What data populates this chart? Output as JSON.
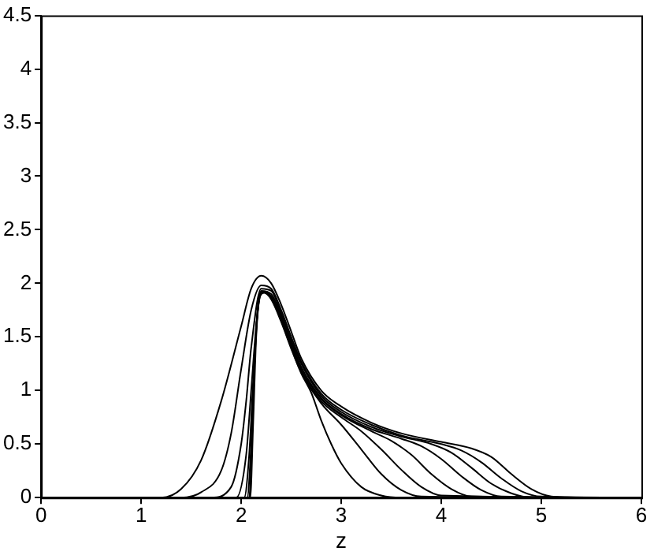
{
  "chart_data": {
    "type": "line",
    "xlabel": "z",
    "xlim": [
      0,
      6
    ],
    "xticks": [
      0,
      1,
      2,
      3,
      4,
      5,
      6
    ],
    "ylim": [
      0,
      4.5
    ],
    "yticks": [
      0,
      0.5,
      1,
      1.5,
      2,
      2.5,
      3,
      3.5,
      4,
      4.5
    ],
    "grid": false,
    "legend": false,
    "marker": "none",
    "line_style": "solid",
    "series": [
      {
        "color": "#000000",
        "x": [
          0,
          1.2,
          1.4,
          1.6,
          1.8,
          2.0,
          2.1,
          2.2,
          2.3,
          2.4,
          2.5,
          2.6,
          2.8,
          3.0,
          3.3,
          3.6,
          4.0,
          4.3,
          4.5,
          4.7,
          4.9,
          5.1,
          5.3,
          6
        ],
        "values": [
          0,
          0,
          0.08,
          0.35,
          0.9,
          1.6,
          1.95,
          2.07,
          2.0,
          1.8,
          1.55,
          1.3,
          1.0,
          0.85,
          0.7,
          0.6,
          0.52,
          0.46,
          0.38,
          0.22,
          0.08,
          0.01,
          0,
          0
        ]
      },
      {
        "color": "#000000",
        "x": [
          0,
          1.4,
          1.6,
          1.8,
          1.9,
          2.0,
          2.1,
          2.2,
          2.3,
          2.4,
          2.5,
          2.6,
          2.8,
          3.0,
          3.3,
          3.6,
          4.0,
          4.2,
          4.4,
          4.6,
          4.8,
          5.0,
          6
        ],
        "values": [
          0,
          0,
          0.05,
          0.25,
          0.6,
          1.2,
          1.75,
          1.98,
          1.95,
          1.75,
          1.5,
          1.27,
          0.97,
          0.82,
          0.68,
          0.58,
          0.5,
          0.44,
          0.33,
          0.18,
          0.06,
          0.01,
          0
        ]
      },
      {
        "color": "#000000",
        "x": [
          0,
          1.7,
          1.9,
          2.0,
          2.05,
          2.1,
          2.2,
          2.3,
          2.4,
          2.5,
          2.6,
          2.8,
          3.0,
          3.3,
          3.6,
          3.9,
          4.1,
          4.3,
          4.5,
          4.7,
          4.9,
          6
        ],
        "values": [
          0,
          0,
          0.1,
          0.5,
          0.9,
          1.4,
          1.95,
          1.93,
          1.72,
          1.47,
          1.25,
          0.95,
          0.8,
          0.66,
          0.57,
          0.5,
          0.42,
          0.28,
          0.13,
          0.04,
          0,
          0
        ]
      },
      {
        "color": "#000000",
        "x": [
          0,
          1.95,
          2.05,
          2.1,
          2.15,
          2.2,
          2.3,
          2.4,
          2.5,
          2.6,
          2.8,
          3.0,
          3.3,
          3.6,
          3.8,
          4.0,
          4.2,
          4.4,
          4.6,
          6
        ],
        "values": [
          0,
          0,
          0.4,
          1.0,
          1.6,
          1.93,
          1.9,
          1.7,
          1.45,
          1.22,
          0.93,
          0.78,
          0.64,
          0.55,
          0.48,
          0.36,
          0.2,
          0.07,
          0.01,
          0
        ]
      },
      {
        "color": "#000000",
        "x": [
          0,
          2.03,
          2.08,
          2.12,
          2.16,
          2.2,
          2.3,
          2.4,
          2.5,
          2.6,
          2.8,
          3.0,
          3.3,
          3.5,
          3.7,
          3.9,
          4.1,
          4.3,
          6
        ],
        "values": [
          0,
          0,
          0.4,
          1.1,
          1.7,
          1.92,
          1.88,
          1.68,
          1.43,
          1.2,
          0.92,
          0.77,
          0.62,
          0.53,
          0.4,
          0.22,
          0.08,
          0.01,
          0
        ]
      },
      {
        "color": "#000000",
        "x": [
          0,
          2.06,
          2.1,
          2.13,
          2.17,
          2.2,
          2.3,
          2.4,
          2.5,
          2.6,
          2.8,
          3.0,
          3.2,
          3.4,
          3.6,
          3.8,
          4.0,
          6
        ],
        "values": [
          0,
          0,
          0.5,
          1.2,
          1.8,
          1.92,
          1.87,
          1.66,
          1.41,
          1.18,
          0.9,
          0.75,
          0.62,
          0.45,
          0.26,
          0.1,
          0.02,
          0
        ]
      },
      {
        "color": "#000000",
        "x": [
          0,
          2.08,
          2.11,
          2.14,
          2.18,
          2.22,
          2.3,
          2.4,
          2.5,
          2.6,
          2.8,
          3.0,
          3.2,
          3.4,
          3.6,
          3.8,
          6
        ],
        "values": [
          0,
          0,
          0.6,
          1.4,
          1.85,
          1.92,
          1.86,
          1.65,
          1.4,
          1.17,
          0.88,
          0.68,
          0.45,
          0.22,
          0.07,
          0.01,
          0
        ]
      },
      {
        "color": "#000000",
        "x": [
          0,
          2.09,
          2.12,
          2.15,
          2.19,
          2.23,
          2.3,
          2.4,
          2.5,
          2.6,
          2.7,
          2.8,
          2.9,
          3.0,
          3.2,
          3.4,
          3.6,
          6
        ],
        "values": [
          0,
          0,
          0.7,
          1.5,
          1.88,
          1.91,
          1.85,
          1.64,
          1.39,
          1.16,
          0.98,
          0.72,
          0.5,
          0.32,
          0.1,
          0.02,
          0,
          0
        ]
      }
    ]
  }
}
